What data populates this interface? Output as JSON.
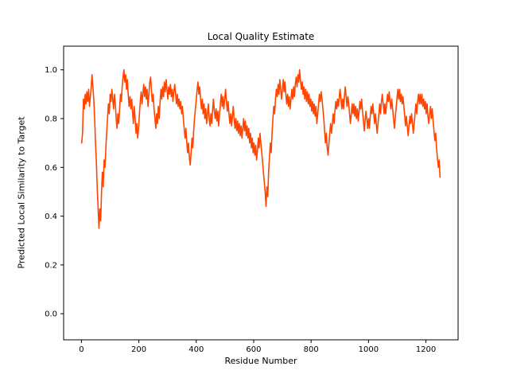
{
  "chart_data": {
    "type": "line",
    "title": "Local Quality Estimate",
    "xlabel": "Residue Number",
    "ylabel": "Predicted Local Similarity to Target",
    "line_color": "#FF4500",
    "axis_color": "#000000",
    "background_color": "#ffffff",
    "grid": false,
    "legend": null,
    "xlim": [
      -62,
      1312
    ],
    "ylim": [
      -0.107,
      1.097
    ],
    "xticks": [
      0,
      200,
      400,
      600,
      800,
      1000,
      1200
    ],
    "yticks": [
      0.0,
      0.2,
      0.4,
      0.6,
      0.8,
      1.0
    ],
    "x_start": 1,
    "x_step": 3,
    "n_points": 417,
    "y": [
      0.7,
      0.74,
      0.88,
      0.84,
      0.9,
      0.86,
      0.91,
      0.87,
      0.92,
      0.85,
      0.89,
      0.93,
      0.98,
      0.93,
      0.88,
      0.8,
      0.7,
      0.62,
      0.52,
      0.44,
      0.35,
      0.43,
      0.38,
      0.5,
      0.58,
      0.52,
      0.63,
      0.6,
      0.68,
      0.74,
      0.8,
      0.86,
      0.82,
      0.9,
      0.87,
      0.92,
      0.88,
      0.84,
      0.9,
      0.86,
      0.8,
      0.76,
      0.82,
      0.78,
      0.84,
      0.9,
      0.87,
      0.93,
      0.97,
      1.0,
      0.95,
      0.98,
      0.92,
      0.96,
      0.9,
      0.85,
      0.89,
      0.84,
      0.88,
      0.83,
      0.78,
      0.85,
      0.8,
      0.74,
      0.78,
      0.72,
      0.76,
      0.82,
      0.87,
      0.91,
      0.86,
      0.9,
      0.94,
      0.89,
      0.93,
      0.88,
      0.92,
      0.85,
      0.9,
      0.95,
      0.97,
      0.91,
      0.87,
      0.9,
      0.84,
      0.8,
      0.76,
      0.82,
      0.78,
      0.85,
      0.8,
      0.87,
      0.92,
      0.88,
      0.93,
      0.89,
      0.95,
      0.91,
      0.96,
      0.92,
      0.88,
      0.93,
      0.9,
      0.94,
      0.89,
      0.92,
      0.87,
      0.91,
      0.94,
      0.9,
      0.86,
      0.9,
      0.85,
      0.88,
      0.84,
      0.87,
      0.82,
      0.85,
      0.8,
      0.76,
      0.72,
      0.76,
      0.7,
      0.66,
      0.7,
      0.64,
      0.61,
      0.66,
      0.72,
      0.68,
      0.75,
      0.8,
      0.84,
      0.88,
      0.92,
      0.95,
      0.9,
      0.93,
      0.88,
      0.84,
      0.88,
      0.82,
      0.86,
      0.8,
      0.84,
      0.78,
      0.82,
      0.86,
      0.8,
      0.77,
      0.82,
      0.78,
      0.84,
      0.88,
      0.83,
      0.8,
      0.84,
      0.79,
      0.83,
      0.77,
      0.82,
      0.86,
      0.9,
      0.85,
      0.89,
      0.84,
      0.88,
      0.92,
      0.87,
      0.83,
      0.87,
      0.82,
      0.78,
      0.82,
      0.77,
      0.81,
      0.85,
      0.8,
      0.76,
      0.8,
      0.75,
      0.79,
      0.74,
      0.78,
      0.73,
      0.77,
      0.72,
      0.76,
      0.8,
      0.75,
      0.79,
      0.73,
      0.77,
      0.72,
      0.76,
      0.7,
      0.74,
      0.68,
      0.72,
      0.66,
      0.7,
      0.65,
      0.69,
      0.63,
      0.67,
      0.72,
      0.68,
      0.74,
      0.7,
      0.66,
      0.62,
      0.58,
      0.54,
      0.5,
      0.44,
      0.52,
      0.48,
      0.58,
      0.64,
      0.7,
      0.66,
      0.74,
      0.8,
      0.85,
      0.82,
      0.88,
      0.92,
      0.89,
      0.94,
      0.9,
      0.96,
      0.92,
      0.88,
      0.92,
      0.96,
      0.91,
      0.95,
      0.9,
      0.86,
      0.9,
      0.85,
      0.89,
      0.84,
      0.88,
      0.92,
      0.88,
      0.93,
      0.89,
      0.94,
      0.97,
      0.93,
      0.98,
      0.95,
      1.0,
      0.96,
      0.92,
      0.95,
      0.9,
      0.93,
      0.88,
      0.92,
      0.87,
      0.91,
      0.86,
      0.9,
      0.85,
      0.88,
      0.83,
      0.87,
      0.82,
      0.86,
      0.81,
      0.85,
      0.78,
      0.82,
      0.86,
      0.9,
      0.87,
      0.91,
      0.88,
      0.84,
      0.8,
      0.75,
      0.7,
      0.74,
      0.68,
      0.65,
      0.7,
      0.74,
      0.78,
      0.74,
      0.78,
      0.82,
      0.78,
      0.83,
      0.87,
      0.84,
      0.88,
      0.85,
      0.89,
      0.92,
      0.88,
      0.84,
      0.88,
      0.84,
      0.89,
      0.93,
      0.89,
      0.85,
      0.89,
      0.86,
      0.82,
      0.78,
      0.82,
      0.86,
      0.82,
      0.86,
      0.81,
      0.85,
      0.8,
      0.84,
      0.79,
      0.83,
      0.87,
      0.84,
      0.88,
      0.83,
      0.79,
      0.75,
      0.79,
      0.83,
      0.8,
      0.76,
      0.8,
      0.76,
      0.81,
      0.85,
      0.82,
      0.86,
      0.82,
      0.78,
      0.82,
      0.78,
      0.74,
      0.78,
      0.82,
      0.86,
      0.82,
      0.87,
      0.9,
      0.86,
      0.82,
      0.86,
      0.82,
      0.86,
      0.9,
      0.87,
      0.91,
      0.87,
      0.84,
      0.88,
      0.84,
      0.8,
      0.76,
      0.8,
      0.84,
      0.88,
      0.92,
      0.88,
      0.92,
      0.87,
      0.9,
      0.86,
      0.89,
      0.85,
      0.81,
      0.77,
      0.81,
      0.77,
      0.73,
      0.77,
      0.81,
      0.78,
      0.82,
      0.78,
      0.74,
      0.78,
      0.82,
      0.86,
      0.82,
      0.87,
      0.9,
      0.86,
      0.9,
      0.86,
      0.9,
      0.85,
      0.88,
      0.84,
      0.87,
      0.82,
      0.86,
      0.81,
      0.78,
      0.82,
      0.85,
      0.8,
      0.84,
      0.79,
      0.75,
      0.71,
      0.74,
      0.68,
      0.64,
      0.6,
      0.63,
      0.56
    ]
  }
}
